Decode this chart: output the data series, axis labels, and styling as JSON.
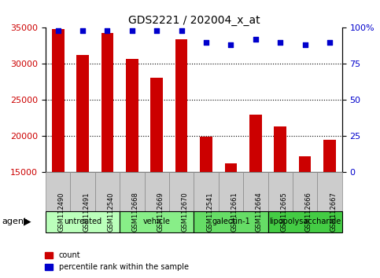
{
  "title": "GDS2221 / 202004_x_at",
  "samples": [
    "GSM112490",
    "GSM112491",
    "GSM112540",
    "GSM112668",
    "GSM112669",
    "GSM112670",
    "GSM112541",
    "GSM112661",
    "GSM112664",
    "GSM112665",
    "GSM112666",
    "GSM112667"
  ],
  "counts": [
    34800,
    31200,
    34300,
    30700,
    28100,
    33400,
    19900,
    16200,
    23000,
    21400,
    17200,
    19500
  ],
  "percentiles": [
    98,
    98,
    98,
    98,
    98,
    98,
    90,
    88,
    92,
    90,
    88,
    90
  ],
  "bar_color": "#cc0000",
  "dot_color": "#0000cc",
  "ylim_left": [
    15000,
    35000
  ],
  "yticks_left": [
    15000,
    20000,
    25000,
    30000,
    35000
  ],
  "ylim_right": [
    0,
    100
  ],
  "yticks_right": [
    0,
    25,
    50,
    75,
    100
  ],
  "groups": [
    {
      "label": "untreated",
      "start": 0,
      "end": 3,
      "color": "#bbffbb"
    },
    {
      "label": "vehicle",
      "start": 3,
      "end": 6,
      "color": "#88ee88"
    },
    {
      "label": "galectin-1",
      "start": 6,
      "end": 9,
      "color": "#66dd66"
    },
    {
      "label": "lipopolysaccharide",
      "start": 9,
      "end": 12,
      "color": "#44cc44"
    }
  ],
  "agent_label": "agent",
  "legend_count_label": "count",
  "legend_percentile_label": "percentile rank within the sample",
  "grid_color": "#000000",
  "bg_color": "#ffffff",
  "tick_bg_color": "#cccccc",
  "bar_width": 0.5
}
